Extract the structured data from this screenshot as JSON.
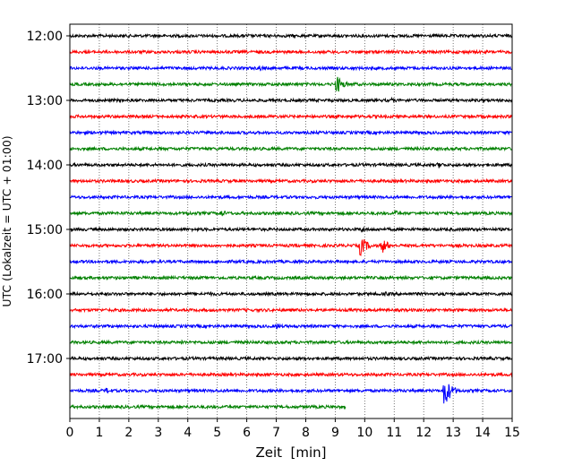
{
  "chart_data": {
    "type": "line",
    "xlabel": "Zeit  [min]",
    "ylabel": "UTC (Lokalzeit = UTC + 01:00)",
    "xlim": [
      0,
      15
    ],
    "x_ticks": [
      0,
      1,
      2,
      3,
      4,
      5,
      6,
      7,
      8,
      9,
      10,
      11,
      12,
      13,
      14,
      15
    ],
    "x_tick_labels": [
      "0",
      "1",
      "2",
      "3",
      "4",
      "5",
      "6",
      "7",
      "8",
      "9",
      "10",
      "11",
      "12",
      "13",
      "14",
      "15"
    ],
    "y_tick_labels": [
      "12:00",
      "13:00",
      "14:00",
      "15:00",
      "16:00",
      "17:00"
    ],
    "y_tick_rows": [
      0,
      4,
      8,
      12,
      16,
      20
    ],
    "grid_vertical": true,
    "grid_style": "dotted",
    "series": [
      {
        "start_utc": "12:00",
        "color": "#000000",
        "x_end": 15,
        "events": [
          {
            "t": 6.0,
            "amp": 2.5
          },
          {
            "t": 8.8,
            "amp": 2
          }
        ]
      },
      {
        "start_utc": "12:15",
        "color": "#ff0000",
        "x_end": 15,
        "events": []
      },
      {
        "start_utc": "12:30",
        "color": "#0000ff",
        "x_end": 15,
        "events": [
          {
            "t": 6.4,
            "amp": 4
          }
        ]
      },
      {
        "start_utc": "12:45",
        "color": "#008000",
        "x_end": 15,
        "events": [
          {
            "t": 9.05,
            "amp": 11
          },
          {
            "t": 9.6,
            "amp": 3
          }
        ]
      },
      {
        "start_utc": "13:00",
        "color": "#000000",
        "x_end": 15,
        "events": [
          {
            "t": 10.9,
            "amp": 3
          }
        ]
      },
      {
        "start_utc": "13:15",
        "color": "#ff0000",
        "x_end": 15,
        "events": []
      },
      {
        "start_utc": "13:30",
        "color": "#0000ff",
        "x_end": 15,
        "events": []
      },
      {
        "start_utc": "13:45",
        "color": "#008000",
        "x_end": 15,
        "events": []
      },
      {
        "start_utc": "14:00",
        "color": "#000000",
        "x_end": 15,
        "events": [
          {
            "t": 12.5,
            "amp": 4
          }
        ]
      },
      {
        "start_utc": "14:15",
        "color": "#ff0000",
        "x_end": 15,
        "events": []
      },
      {
        "start_utc": "14:30",
        "color": "#0000ff",
        "x_end": 15,
        "events": []
      },
      {
        "start_utc": "14:45",
        "color": "#008000",
        "x_end": 15,
        "events": [
          {
            "t": 4.0,
            "amp": 3
          },
          {
            "t": 5.1,
            "amp": 5
          },
          {
            "t": 11.0,
            "amp": 4
          }
        ]
      },
      {
        "start_utc": "15:00",
        "color": "#000000",
        "x_end": 15,
        "events": [
          {
            "t": 9.9,
            "amp": 4
          }
        ]
      },
      {
        "start_utc": "15:15",
        "color": "#ff0000",
        "x_end": 15,
        "events": [
          {
            "t": 9.85,
            "amp": 13
          },
          {
            "t": 10.6,
            "amp": 9
          }
        ]
      },
      {
        "start_utc": "15:30",
        "color": "#0000ff",
        "x_end": 15,
        "events": [
          {
            "t": 5.5,
            "amp": 2
          }
        ]
      },
      {
        "start_utc": "15:45",
        "color": "#008000",
        "x_end": 15,
        "events": []
      },
      {
        "start_utc": "16:00",
        "color": "#000000",
        "x_end": 15,
        "events": [
          {
            "t": 4.7,
            "amp": 3
          },
          {
            "t": 10.7,
            "amp": 3
          }
        ]
      },
      {
        "start_utc": "16:15",
        "color": "#ff0000",
        "x_end": 15,
        "events": []
      },
      {
        "start_utc": "16:30",
        "color": "#0000ff",
        "x_end": 15,
        "events": [
          {
            "t": 7.0,
            "amp": 4
          }
        ]
      },
      {
        "start_utc": "16:45",
        "color": "#008000",
        "x_end": 15,
        "events": [
          {
            "t": 3.8,
            "amp": 3
          }
        ]
      },
      {
        "start_utc": "17:00",
        "color": "#000000",
        "x_end": 15,
        "events": []
      },
      {
        "start_utc": "17:15",
        "color": "#ff0000",
        "x_end": 15,
        "events": []
      },
      {
        "start_utc": "17:30",
        "color": "#0000ff",
        "x_end": 15,
        "events": [
          {
            "t": 1.25,
            "amp": 4
          },
          {
            "t": 12.7,
            "amp": 19
          }
        ]
      },
      {
        "start_utc": "17:45",
        "color": "#008000",
        "x_end": 9.35,
        "events": []
      }
    ]
  }
}
